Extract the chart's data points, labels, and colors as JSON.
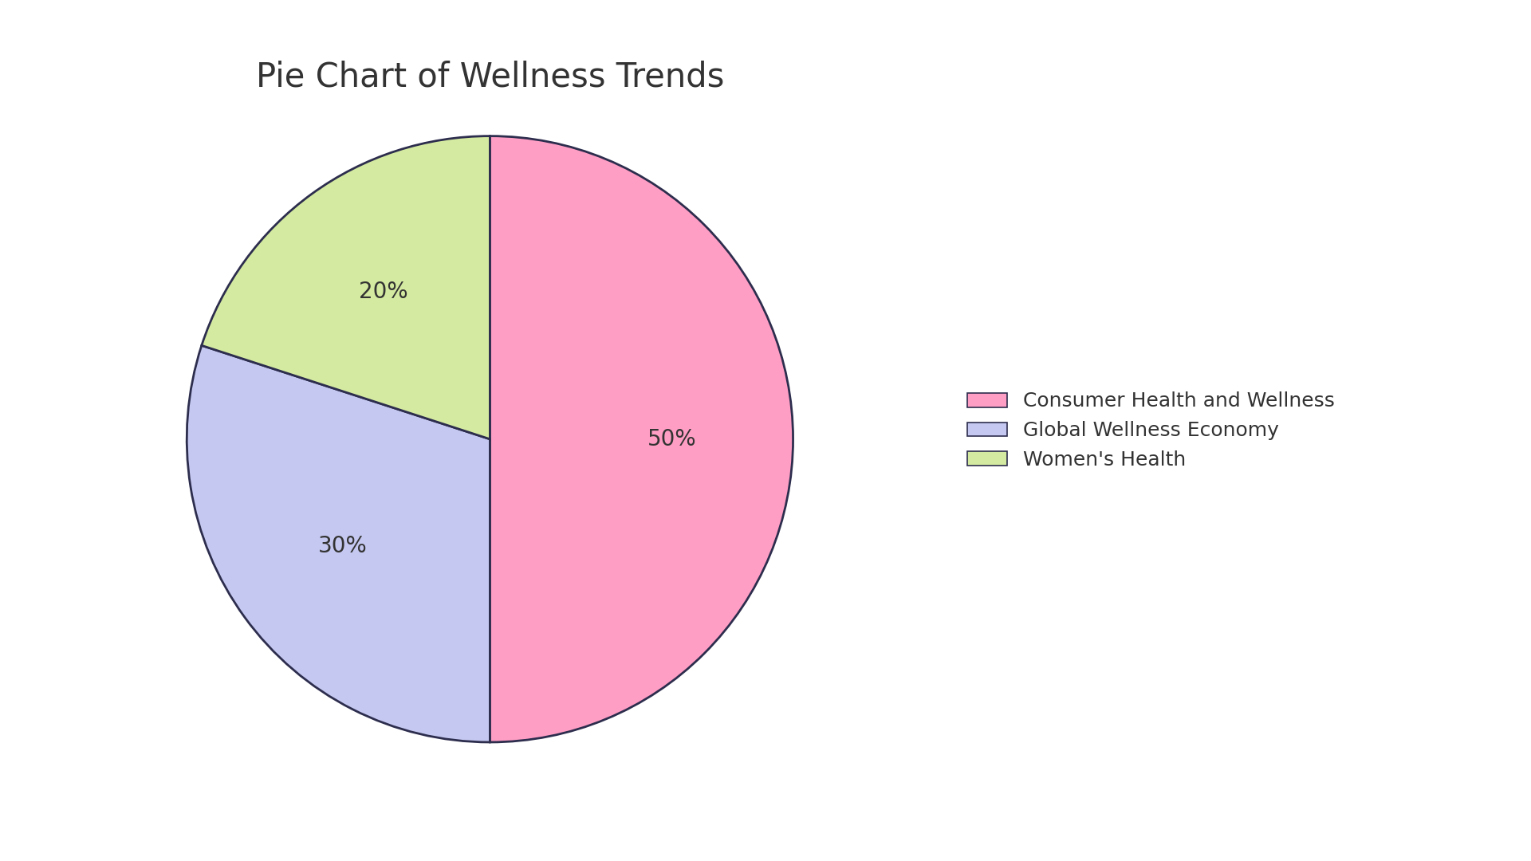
{
  "title": "Pie Chart of Wellness Trends",
  "labels": [
    "Consumer Health and Wellness",
    "Global Wellness Economy",
    "Women's Health"
  ],
  "values": [
    50,
    30,
    20
  ],
  "colors": [
    "#FF9EC4",
    "#C5C8F0",
    "#D4EAA0"
  ],
  "edge_color": "#2d2d4e",
  "edge_linewidth": 2.0,
  "autopct_fontsize": 20,
  "title_fontsize": 30,
  "legend_fontsize": 18,
  "startangle": 90,
  "background_color": "#ffffff",
  "text_color": "#333333",
  "pctdistance": 0.6
}
